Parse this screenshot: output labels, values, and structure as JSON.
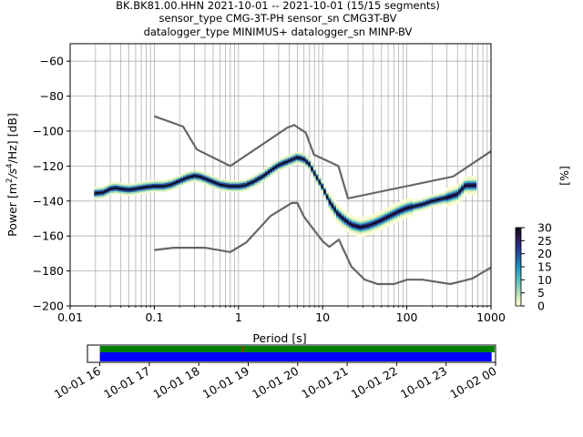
{
  "chart_data": {
    "type": "heatmap",
    "title_lines": [
      "BK.BK81.00.HHN   2021-10-01 -- 2021-10-01  (15/15 segments)",
      "sensor_type CMG-3T-PH sensor_sn CMG3T-BV",
      "datalogger_type MINIMUS+ datalogger_sn MINP-BV"
    ],
    "xlabel": "Period [s]",
    "ylabel": "Power [m²/s⁴/Hz] [dB]",
    "ylabel_parts": {
      "base": "Power [m",
      "sup1": "2",
      "mid": "/s",
      "sup2": "4",
      "end": "/Hz] [dB]"
    },
    "xscale": "log",
    "xlim": [
      0.01,
      1000
    ],
    "ylim": [
      -200,
      -50
    ],
    "x_ticks": [
      {
        "value": 0.01,
        "label": "0.01"
      },
      {
        "value": 0.1,
        "label": "0.1"
      },
      {
        "value": 1,
        "label": "1"
      },
      {
        "value": 10,
        "label": "10"
      },
      {
        "value": 100,
        "label": "100"
      },
      {
        "value": 1000,
        "label": "1000"
      }
    ],
    "y_ticks": [
      {
        "value": -60,
        "label": "−60"
      },
      {
        "value": -80,
        "label": "−80"
      },
      {
        "value": -100,
        "label": "−100"
      },
      {
        "value": -120,
        "label": "−120"
      },
      {
        "value": -140,
        "label": "−140"
      },
      {
        "value": -160,
        "label": "−160"
      },
      {
        "value": -180,
        "label": "−180"
      },
      {
        "value": -200,
        "label": "−200"
      }
    ],
    "grid": true,
    "colorbar": {
      "label": "[%]",
      "min": 0,
      "max": 30,
      "ticks": [
        {
          "value": 0,
          "label": "0"
        },
        {
          "value": 5,
          "label": "5"
        },
        {
          "value": 10,
          "label": "10"
        },
        {
          "value": 15,
          "label": "15"
        },
        {
          "value": 20,
          "label": "20"
        },
        {
          "value": 25,
          "label": "25"
        },
        {
          "value": 30,
          "label": "30"
        }
      ],
      "colors": [
        "#ffffd9",
        "#c7e9b4",
        "#7fcdbb",
        "#41b6c4",
        "#1d91c0",
        "#225ea8",
        "#253494",
        "#2b1a4a",
        "#0d0716"
      ]
    },
    "noise_model_color": "#666666",
    "nhnm": [
      [
        0.1,
        -91.5
      ],
      [
        0.22,
        -97.4
      ],
      [
        0.32,
        -110.5
      ],
      [
        0.8,
        -120.0
      ],
      [
        3.8,
        -98.0
      ],
      [
        4.6,
        -96.5
      ],
      [
        6.3,
        -101.0
      ],
      [
        7.9,
        -113.5
      ],
      [
        15.4,
        -120.0
      ],
      [
        20.0,
        -138.5
      ],
      [
        354.8,
        -126.0
      ],
      [
        1000,
        -111.5
      ]
    ],
    "nlnm": [
      [
        0.1,
        -168.0
      ],
      [
        0.17,
        -166.7
      ],
      [
        0.4,
        -166.7
      ],
      [
        0.8,
        -169.2
      ],
      [
        1.24,
        -163.7
      ],
      [
        2.4,
        -148.6
      ],
      [
        4.3,
        -141.1
      ],
      [
        5.0,
        -141.1
      ],
      [
        6.0,
        -149.0
      ],
      [
        10.0,
        -163.0
      ],
      [
        12.0,
        -166.2
      ],
      [
        15.6,
        -162.1
      ],
      [
        21.9,
        -177.5
      ],
      [
        31.6,
        -185.0
      ],
      [
        45.0,
        -187.5
      ],
      [
        70.0,
        -187.5
      ],
      [
        101.0,
        -185.0
      ],
      [
        154.0,
        -185.0
      ],
      [
        328.0,
        -187.5
      ],
      [
        600.0,
        -184.4
      ],
      [
        1000,
        -178.0
      ]
    ],
    "mode_curve": [
      [
        0.02,
        -135.5
      ],
      [
        0.025,
        -135.0
      ],
      [
        0.03,
        -133.0
      ],
      [
        0.035,
        -132.5
      ],
      [
        0.04,
        -133.0
      ],
      [
        0.05,
        -133.5
      ],
      [
        0.06,
        -133.0
      ],
      [
        0.08,
        -132.0
      ],
      [
        0.1,
        -131.5
      ],
      [
        0.13,
        -131.5
      ],
      [
        0.16,
        -130.5
      ],
      [
        0.2,
        -128.5
      ],
      [
        0.25,
        -126.5
      ],
      [
        0.3,
        -125.5
      ],
      [
        0.35,
        -126.0
      ],
      [
        0.42,
        -127.5
      ],
      [
        0.5,
        -129.0
      ],
      [
        0.6,
        -130.5
      ],
      [
        0.8,
        -131.5
      ],
      [
        1.0,
        -131.5
      ],
      [
        1.2,
        -131.0
      ],
      [
        1.5,
        -129.0
      ],
      [
        2.0,
        -125.5
      ],
      [
        2.5,
        -122.0
      ],
      [
        3.0,
        -119.5
      ],
      [
        4.0,
        -117.0
      ],
      [
        5.0,
        -115.0
      ],
      [
        6.0,
        -116.0
      ],
      [
        7.0,
        -119.0
      ],
      [
        8.0,
        -124.0
      ],
      [
        10.0,
        -132.0
      ],
      [
        12.0,
        -140.0
      ],
      [
        15.0,
        -147.0
      ],
      [
        18.0,
        -150.5
      ],
      [
        22.0,
        -153.5
      ],
      [
        28.0,
        -155.0
      ],
      [
        35.0,
        -154.0
      ],
      [
        45.0,
        -152.0
      ],
      [
        60.0,
        -149.0
      ],
      [
        80.0,
        -146.0
      ],
      [
        100.0,
        -144.0
      ],
      [
        150.0,
        -142.0
      ],
      [
        200.0,
        -140.0
      ],
      [
        300.0,
        -138.0
      ],
      [
        400.0,
        -136.0
      ],
      [
        500.0,
        -131.0
      ],
      [
        650.0,
        -131.0
      ]
    ],
    "timeline": {
      "x_ticks": [
        "10-01 16",
        "10-01 17",
        "10-01 18",
        "10-01 19",
        "10-01 20",
        "10-01 21",
        "10-01 22",
        "10-01 23",
        "10-02 00"
      ],
      "start_hour": 15.75,
      "end_hour": 24.0,
      "data_bar": {
        "color": "#008000",
        "from_hour": 16.0,
        "to_hour": 23.98
      },
      "psd_bar": {
        "color": "#0000ff",
        "from_hour": 16.0,
        "to_hour": 23.92
      },
      "gap_marks": [
        {
          "hour": 18.9,
          "color": "#ff0000"
        }
      ]
    }
  }
}
